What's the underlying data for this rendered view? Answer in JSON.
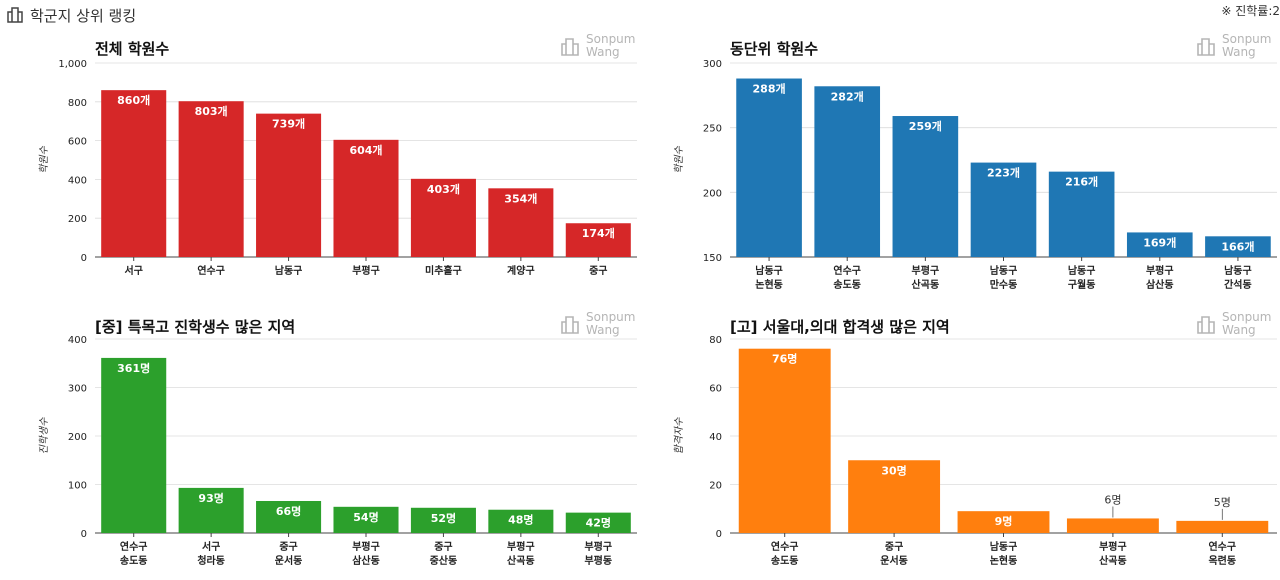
{
  "header": {
    "title": "학군지 상위 랭킹",
    "note": "※ 진학률:2"
  },
  "brand": {
    "line1": "Sonpum",
    "line2": "Wang"
  },
  "chart_data": [
    {
      "id": "c1",
      "type": "bar",
      "title": "전체 학원수",
      "ylabel": "학원수",
      "xlabel": "",
      "ylim": [
        0,
        1000
      ],
      "yticks": [
        0,
        200,
        400,
        600,
        800,
        1000
      ],
      "ytick_labels": [
        "0",
        "200",
        "400",
        "600",
        "800",
        "1,000"
      ],
      "color": "#d62728",
      "categories": [
        [
          "서구"
        ],
        [
          "연수구"
        ],
        [
          "남동구"
        ],
        [
          "부평구"
        ],
        [
          "미추홀구"
        ],
        [
          "계양구"
        ],
        [
          "중구"
        ]
      ],
      "values": [
        860,
        803,
        739,
        604,
        403,
        354,
        174
      ],
      "data_labels": [
        "860개",
        "803개",
        "739개",
        "604개",
        "403개",
        "354개",
        "174개"
      ],
      "label_inside": [
        true,
        true,
        true,
        true,
        true,
        true,
        true
      ]
    },
    {
      "id": "c2",
      "type": "bar",
      "title": "동단위 학원수",
      "ylabel": "학원수",
      "xlabel": "",
      "ylim": [
        150,
        300
      ],
      "yticks": [
        150,
        200,
        250,
        300
      ],
      "ytick_labels": [
        "150",
        "200",
        "250",
        "300"
      ],
      "color": "#1f77b4",
      "categories": [
        [
          "남동구",
          "논현동"
        ],
        [
          "연수구",
          "송도동"
        ],
        [
          "부평구",
          "산곡동"
        ],
        [
          "남동구",
          "만수동"
        ],
        [
          "남동구",
          "구월동"
        ],
        [
          "부평구",
          "삼산동"
        ],
        [
          "남동구",
          "간석동"
        ]
      ],
      "values": [
        288,
        282,
        259,
        223,
        216,
        169,
        166
      ],
      "data_labels": [
        "288개",
        "282개",
        "259개",
        "223개",
        "216개",
        "169개",
        "166개"
      ],
      "label_inside": [
        true,
        true,
        true,
        true,
        true,
        true,
        true
      ]
    },
    {
      "id": "c3",
      "type": "bar",
      "title": "[중] 특목고 진학생수 많은 지역",
      "ylabel": "진학생수",
      "xlabel": "",
      "ylim": [
        0,
        400
      ],
      "yticks": [
        0,
        100,
        200,
        300,
        400
      ],
      "ytick_labels": [
        "0",
        "100",
        "200",
        "300",
        "400"
      ],
      "color": "#2ca02c",
      "categories": [
        [
          "연수구",
          "송도동"
        ],
        [
          "서구",
          "청라동"
        ],
        [
          "중구",
          "운서동"
        ],
        [
          "부평구",
          "삼산동"
        ],
        [
          "중구",
          "중산동"
        ],
        [
          "부평구",
          "산곡동"
        ],
        [
          "부평구",
          "부평동"
        ]
      ],
      "values": [
        361,
        93,
        66,
        54,
        52,
        48,
        42
      ],
      "data_labels": [
        "361명",
        "93명",
        "66명",
        "54명",
        "52명",
        "48명",
        "42명"
      ],
      "label_inside": [
        true,
        true,
        true,
        true,
        true,
        true,
        true
      ]
    },
    {
      "id": "c4",
      "type": "bar",
      "title": "[고] 서울대,의대 합격생 많은 지역",
      "ylabel": "합격자수",
      "xlabel": "",
      "ylim": [
        0,
        80
      ],
      "yticks": [
        0,
        20,
        40,
        60,
        80
      ],
      "ytick_labels": [
        "0",
        "20",
        "40",
        "60",
        "80"
      ],
      "color": "#ff7f0e",
      "categories": [
        [
          "연수구",
          "송도동"
        ],
        [
          "중구",
          "운서동"
        ],
        [
          "남동구",
          "논현동"
        ],
        [
          "부평구",
          "산곡동"
        ],
        [
          "연수구",
          "옥련동"
        ]
      ],
      "values": [
        76,
        30,
        9,
        6,
        5
      ],
      "data_labels": [
        "76명",
        "30명",
        "9명",
        "6명",
        "5명"
      ],
      "label_inside": [
        true,
        true,
        true,
        false,
        false
      ]
    }
  ]
}
